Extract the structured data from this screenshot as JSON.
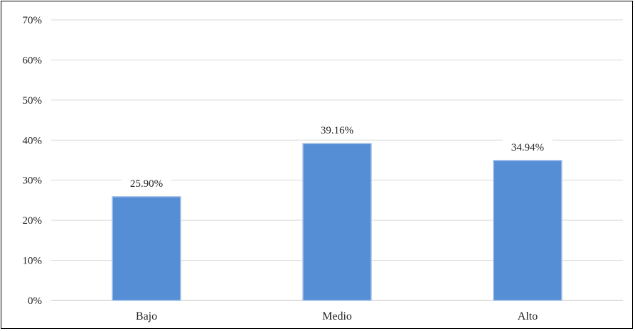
{
  "chart_data": {
    "type": "bar",
    "categories": [
      "Bajo",
      "Medio",
      "Alto"
    ],
    "values": [
      25.9,
      39.16,
      34.94
    ],
    "data_labels": [
      "25.90%",
      "39.16%",
      "34.94%"
    ],
    "title": "",
    "xlabel": "",
    "ylabel": "",
    "ylim": [
      0,
      70
    ],
    "y_ticks": [
      0,
      10,
      20,
      30,
      40,
      50,
      60,
      70
    ],
    "y_tick_labels": [
      "0%",
      "10%",
      "20%",
      "30%",
      "40%",
      "50%",
      "60%",
      "70%"
    ],
    "grid": true,
    "legend": "none",
    "bar_color": "#558ED5",
    "gridline_color": "#D9D9D9"
  }
}
